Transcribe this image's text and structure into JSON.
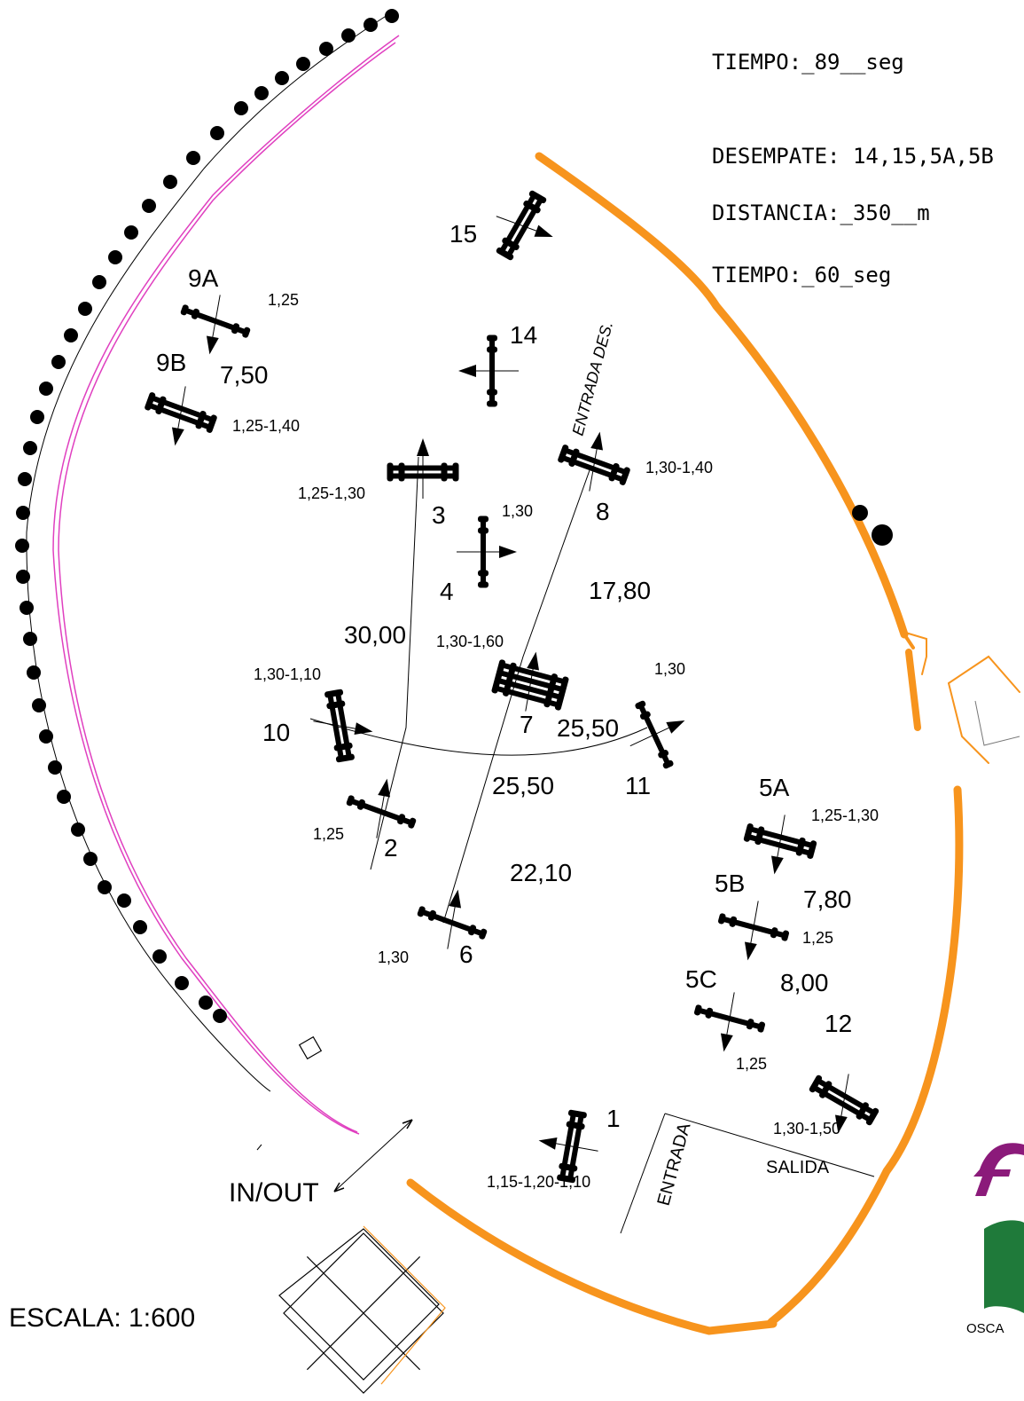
{
  "info": {
    "tiempo_1": "TIEMPO:_89__seg",
    "desempate": "DESEMPATE: 14,15,5A,5B",
    "distancia": "DISTANCIA:_350__m",
    "tiempo_2": "TIEMPO:_60_seg"
  },
  "scale_label": "ESCALA: 1:600",
  "in_out_label": "IN/OUT",
  "entrada_des_label": "ENTRADA DES.",
  "entrada_label": "ENTRADA",
  "salida_label": "SALIDA",
  "logo_caption": "OSCA",
  "colors": {
    "arena_fence": "#f7941d",
    "tree_line": "#e040c0",
    "ink": "#000000"
  },
  "obstacles": [
    {
      "number": "15",
      "height": ""
    },
    {
      "number": "9A",
      "height": "1,25"
    },
    {
      "number": "9B",
      "height": "1,25-1,40"
    },
    {
      "number": "14",
      "height": ""
    },
    {
      "number": "3",
      "height": "1,25-1,30"
    },
    {
      "number": "8",
      "height": "1,30-1,40"
    },
    {
      "number": "4",
      "height": "1,30"
    },
    {
      "number": "7",
      "height": "1,30-1,60"
    },
    {
      "number": "10",
      "height": "1,30-1,10"
    },
    {
      "number": "11",
      "height": "1,30"
    },
    {
      "number": "2",
      "height": "1,25"
    },
    {
      "number": "6",
      "height": "1,30"
    },
    {
      "number": "5A",
      "height": "1,25-1,30"
    },
    {
      "number": "5B",
      "height": "1,25"
    },
    {
      "number": "5C",
      "height": "1,25"
    },
    {
      "number": "12",
      "height": "1,30-1,50"
    },
    {
      "number": "1",
      "height": "1,15-1,20-1,10"
    }
  ],
  "distances": [
    "7,50",
    "30,00",
    "17,80",
    "25,50",
    "25,50",
    "22,10",
    "7,80",
    "8,00"
  ]
}
